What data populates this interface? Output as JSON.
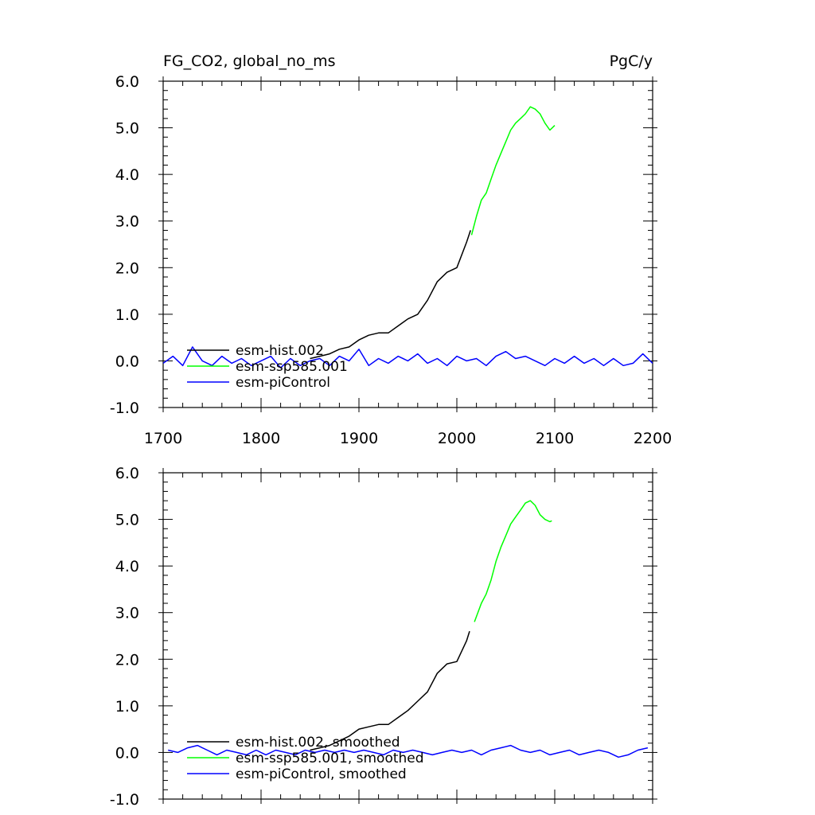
{
  "header": {
    "title": "FG_CO2, global_no_ms",
    "units": "PgC/y"
  },
  "chart_data": [
    {
      "type": "line",
      "panel": "top",
      "xlim": [
        1700,
        2200
      ],
      "ylim": [
        -1.0,
        6.0
      ],
      "x_ticks": [
        "1700",
        "1800",
        "1900",
        "2000",
        "2100",
        "2200"
      ],
      "y_ticks": [
        "-1.0",
        "0.0",
        "1.0",
        "2.0",
        "3.0",
        "4.0",
        "5.0",
        "6.0"
      ],
      "legend_position": "bottom-left",
      "series": [
        {
          "name": "esm-hist.002",
          "color": "#000000",
          "x": [
            1850,
            1860,
            1870,
            1880,
            1890,
            1900,
            1910,
            1920,
            1930,
            1940,
            1950,
            1960,
            1970,
            1980,
            1990,
            2000,
            2010,
            2014
          ],
          "y": [
            0.05,
            0.1,
            0.15,
            0.25,
            0.3,
            0.45,
            0.55,
            0.6,
            0.6,
            0.75,
            0.9,
            1.0,
            1.3,
            1.7,
            1.9,
            2.0,
            2.55,
            2.8
          ]
        },
        {
          "name": "esm-ssp585.001",
          "color": "#00ff00",
          "x": [
            2015,
            2020,
            2025,
            2030,
            2035,
            2040,
            2045,
            2050,
            2055,
            2060,
            2065,
            2070,
            2075,
            2080,
            2085,
            2090,
            2095,
            2100
          ],
          "y": [
            2.7,
            3.1,
            3.45,
            3.6,
            3.9,
            4.2,
            4.45,
            4.7,
            4.95,
            5.1,
            5.2,
            5.3,
            5.45,
            5.4,
            5.3,
            5.1,
            4.95,
            5.05
          ]
        },
        {
          "name": "esm-piControl",
          "color": "#0000ff",
          "x": [
            1700,
            1710,
            1720,
            1730,
            1740,
            1750,
            1760,
            1770,
            1780,
            1790,
            1800,
            1810,
            1820,
            1830,
            1840,
            1850,
            1860,
            1870,
            1880,
            1890,
            1900,
            1910,
            1920,
            1930,
            1940,
            1950,
            1960,
            1970,
            1980,
            1990,
            2000,
            2010,
            2020,
            2030,
            2040,
            2050,
            2060,
            2070,
            2080,
            2090,
            2100,
            2110,
            2120,
            2130,
            2140,
            2150,
            2160,
            2170,
            2180,
            2190,
            2200
          ],
          "y": [
            -0.05,
            0.1,
            -0.1,
            0.3,
            0.0,
            -0.1,
            0.1,
            -0.05,
            0.05,
            -0.1,
            0.0,
            0.1,
            -0.15,
            0.05,
            -0.1,
            0.0,
            0.05,
            -0.1,
            0.1,
            0.0,
            0.25,
            -0.1,
            0.05,
            -0.05,
            0.1,
            0.0,
            0.15,
            -0.05,
            0.05,
            -0.1,
            0.1,
            0.0,
            0.05,
            -0.1,
            0.1,
            0.2,
            0.05,
            0.1,
            0.0,
            -0.1,
            0.05,
            -0.05,
            0.1,
            -0.05,
            0.05,
            -0.1,
            0.05,
            -0.1,
            -0.05,
            0.15,
            -0.05
          ]
        }
      ]
    },
    {
      "type": "line",
      "panel": "bottom",
      "xlim": [
        1700,
        2200
      ],
      "ylim": [
        -1.0,
        6.0
      ],
      "y_ticks": [
        "-1.0",
        "0.0",
        "1.0",
        "2.0",
        "3.0",
        "4.0",
        "5.0",
        "6.0"
      ],
      "legend_position": "bottom-left",
      "series": [
        {
          "name": "esm-hist.002, smoothed",
          "color": "#000000",
          "x": [
            1850,
            1860,
            1870,
            1880,
            1890,
            1900,
            1910,
            1920,
            1930,
            1940,
            1950,
            1960,
            1970,
            1980,
            1990,
            2000,
            2010,
            2013
          ],
          "y": [
            0.05,
            0.1,
            0.15,
            0.25,
            0.35,
            0.5,
            0.55,
            0.6,
            0.6,
            0.75,
            0.9,
            1.1,
            1.3,
            1.7,
            1.9,
            1.95,
            2.4,
            2.6
          ]
        },
        {
          "name": "esm-ssp585.001, smoothed",
          "color": "#00ff00",
          "x": [
            2018,
            2025,
            2030,
            2035,
            2040,
            2045,
            2050,
            2055,
            2060,
            2065,
            2070,
            2075,
            2080,
            2085,
            2090,
            2095,
            2097
          ],
          "y": [
            2.8,
            3.2,
            3.4,
            3.7,
            4.1,
            4.4,
            4.65,
            4.9,
            5.05,
            5.2,
            5.35,
            5.4,
            5.3,
            5.1,
            5.0,
            4.95,
            4.97
          ]
        },
        {
          "name": "esm-piControl, smoothed",
          "color": "#0000ff",
          "x": [
            1705,
            1715,
            1725,
            1735,
            1745,
            1755,
            1765,
            1775,
            1785,
            1795,
            1805,
            1815,
            1825,
            1835,
            1845,
            1855,
            1865,
            1875,
            1885,
            1895,
            1905,
            1915,
            1925,
            1935,
            1945,
            1955,
            1965,
            1975,
            1985,
            1995,
            2005,
            2015,
            2025,
            2035,
            2045,
            2055,
            2065,
            2075,
            2085,
            2095,
            2105,
            2115,
            2125,
            2135,
            2145,
            2155,
            2165,
            2175,
            2185,
            2195
          ],
          "y": [
            0.05,
            0.0,
            0.1,
            0.15,
            0.05,
            -0.05,
            0.05,
            0.0,
            -0.05,
            0.05,
            -0.05,
            0.05,
            0.0,
            -0.05,
            0.05,
            0.0,
            0.05,
            0.0,
            0.05,
            0.0,
            0.05,
            0.0,
            -0.05,
            0.05,
            0.0,
            0.05,
            0.0,
            -0.05,
            0.0,
            0.05,
            0.0,
            0.05,
            -0.05,
            0.05,
            0.1,
            0.15,
            0.05,
            0.0,
            0.05,
            -0.05,
            0.0,
            0.05,
            -0.05,
            0.0,
            0.05,
            0.0,
            -0.1,
            -0.05,
            0.05,
            0.1
          ]
        }
      ]
    }
  ]
}
